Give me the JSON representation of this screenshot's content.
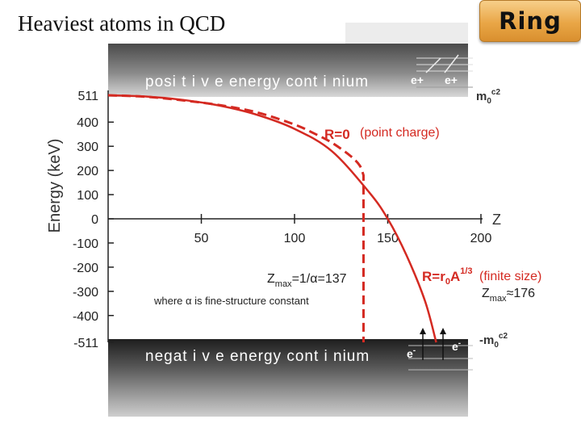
{
  "slide": {
    "title": "Heaviest atoms in QCD",
    "badge": "Ring"
  },
  "chart_data": {
    "type": "line",
    "xlabel": "Z",
    "ylabel": "Energy  (keV)",
    "xlim": [
      0,
      200
    ],
    "ylim": [
      -511,
      511
    ],
    "x_ticks": [
      "50",
      "100",
      "150",
      "200"
    ],
    "x_tick_values": [
      50,
      100,
      150,
      200
    ],
    "y_ticks": [
      "511",
      "400",
      "300",
      "200",
      "100",
      "0",
      "-100",
      "-200",
      "-300",
      "-400",
      "-511"
    ],
    "y_tick_values": [
      511,
      400,
      300,
      200,
      100,
      0,
      -100,
      -200,
      -300,
      -400,
      -511
    ],
    "series": [
      {
        "name": "R=0",
        "style": "dashed",
        "x": [
          0,
          20,
          40,
          60,
          80,
          100,
          110,
          120,
          130,
          135,
          137
        ],
        "y": [
          511,
          505,
          490,
          470,
          440,
          390,
          355,
          315,
          260,
          220,
          180
        ],
        "drop_to": -511
      },
      {
        "name": "R=r0A1/3",
        "style": "solid",
        "x": [
          0,
          20,
          40,
          60,
          80,
          100,
          120,
          140,
          150,
          160,
          170,
          176
        ],
        "y": [
          511,
          506,
          492,
          468,
          430,
          372,
          280,
          110,
          0,
          -150,
          -340,
          -511
        ]
      }
    ],
    "annotations": {
      "positive_band": "posi t i v e energy cont i nium",
      "negative_band": "negat i v e energy cont i nium",
      "pos_top_label": "m",
      "pos_top_sub": "0",
      "pos_top_sup": "c2",
      "neg_label_prefix": "-m",
      "neg_label_sub": "0",
      "neg_label_sup": "c2",
      "e_plus_1": "e+",
      "e_plus_2": "e+",
      "e_minus_1": "e",
      "e_minus_sup": "-",
      "e_minus_2": "e",
      "r0_label": "R=0",
      "point_charge": "(point charge)",
      "finite_label": "R=r",
      "finite_sub": "0",
      "finite_mid": "A",
      "finite_sup": "1/3",
      "finite_size": "(finite size)",
      "zmax_left": "Z",
      "zmax_left_sub": "max",
      "zmax_left_rest": "=1/α=137",
      "alpha_note": "where α is fine-structure constant",
      "zmax_right": "Z",
      "zmax_right_sub": "max",
      "zmax_right_rest": "≈176"
    },
    "colors": {
      "curve": "#d42a22",
      "band_dark": "#2a2a2a",
      "panel": "#8c8c8c",
      "axis": "#222222"
    }
  }
}
